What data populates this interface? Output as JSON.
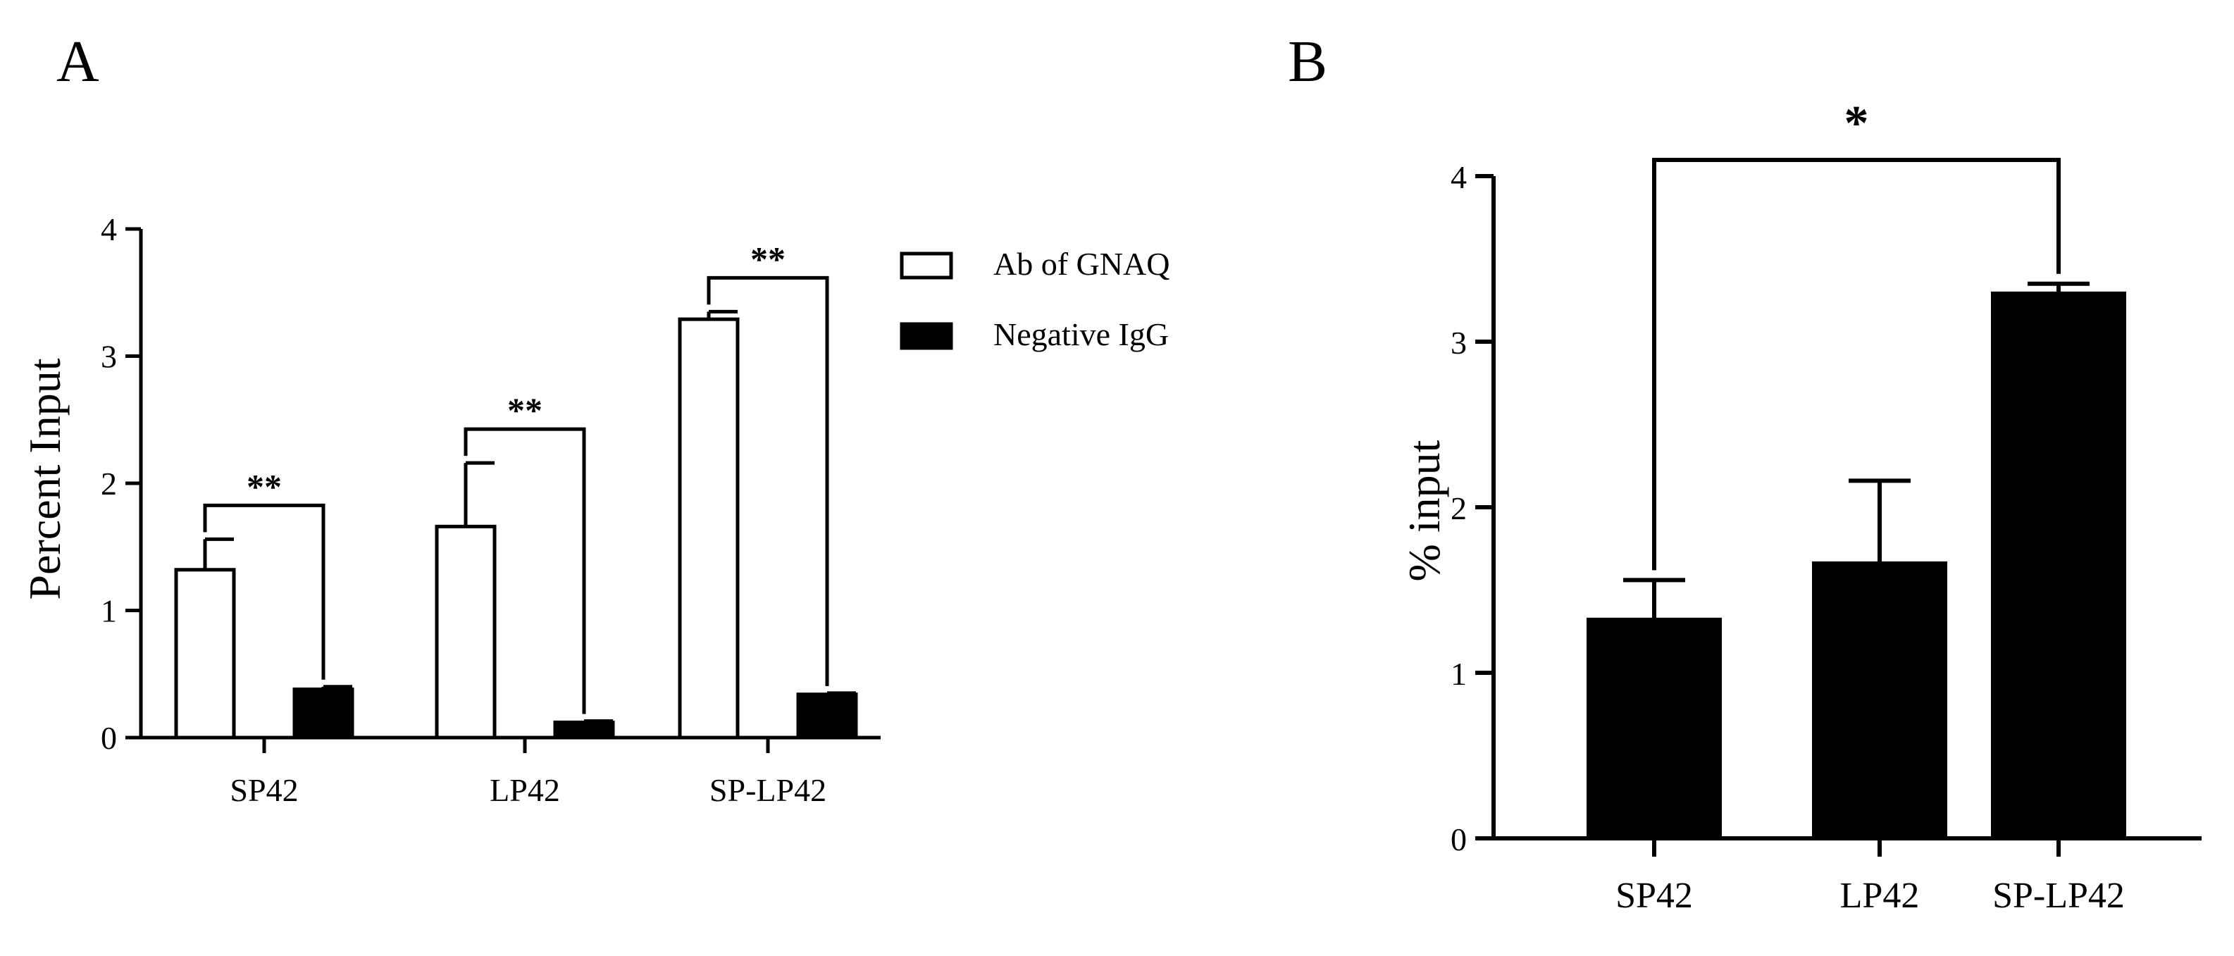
{
  "chart_data": [
    {
      "panel": "A",
      "type": "bar",
      "ylabel": "Percent Input",
      "ylim": [
        0,
        4
      ],
      "yticks": [
        0,
        1,
        2,
        3,
        4
      ],
      "categories": [
        "SP42",
        "LP42",
        "SP-LP42"
      ],
      "series": [
        {
          "name": "Ab of GNAQ",
          "values": [
            1.32,
            1.66,
            3.29
          ],
          "errors": [
            0.24,
            0.5,
            0.06
          ],
          "fill": "#ffffff"
        },
        {
          "name": "Negative IgG",
          "values": [
            0.38,
            0.12,
            0.34
          ],
          "errors": [
            0.02,
            0.01,
            0.01
          ],
          "fill": "#000000"
        }
      ],
      "significance": [
        "**",
        "**",
        "**"
      ],
      "legend_position": "top-right"
    },
    {
      "panel": "B",
      "type": "bar",
      "ylabel": "% input",
      "ylim": [
        0,
        4
      ],
      "yticks": [
        0,
        1,
        2,
        3,
        4
      ],
      "categories": [
        "SP42",
        "LP42",
        "SP-LP42"
      ],
      "values": [
        1.32,
        1.66,
        3.29
      ],
      "errors": [
        0.24,
        0.5,
        0.06
      ],
      "fill": "#000000",
      "significance": {
        "label": "*",
        "from": "SP42",
        "to": "SP-LP42"
      }
    }
  ]
}
